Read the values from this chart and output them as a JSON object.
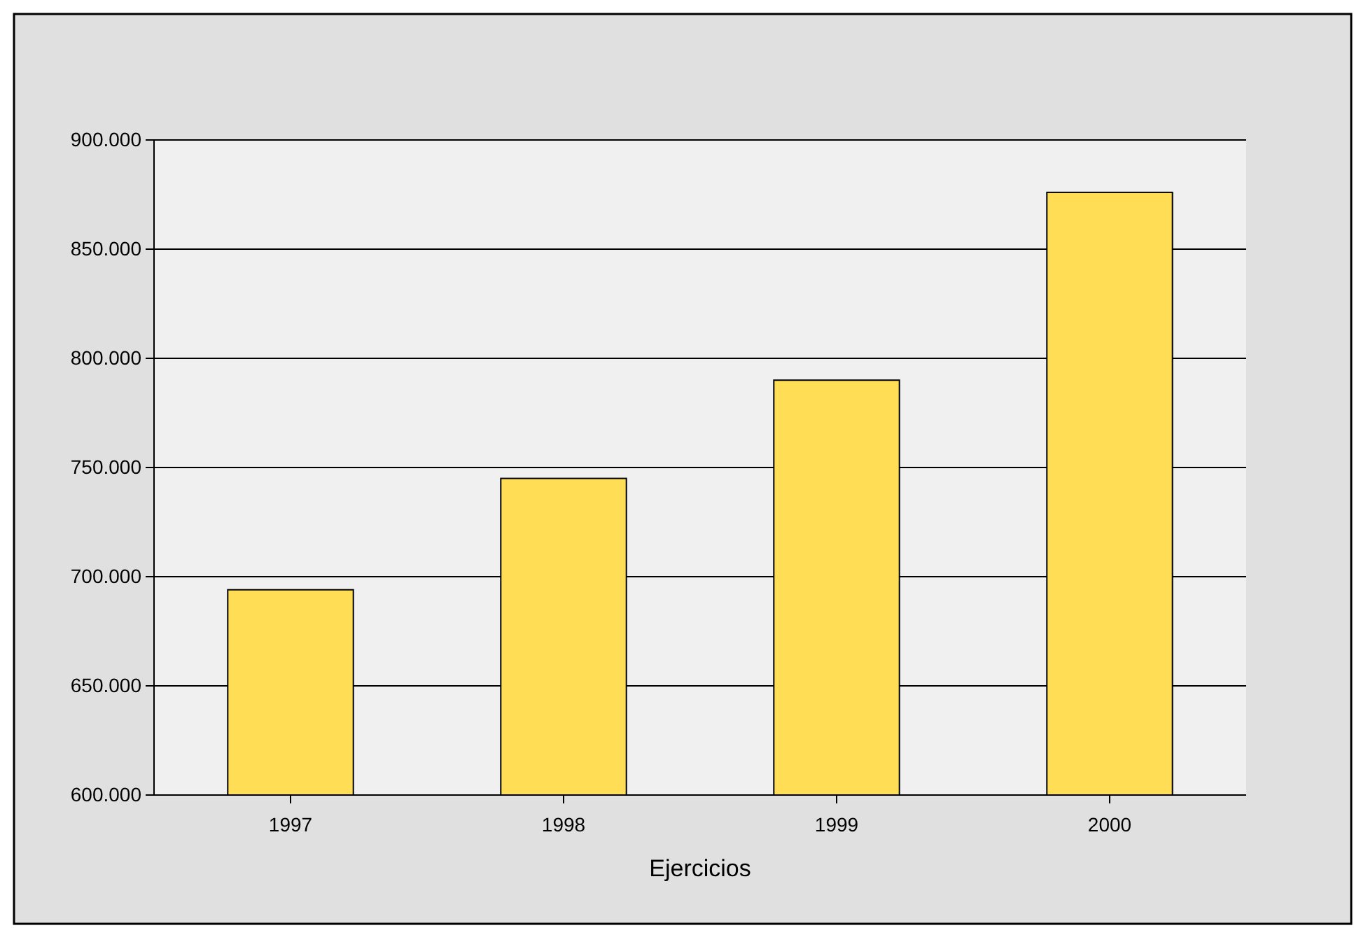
{
  "chart_data": {
    "type": "bar",
    "xlabel": "Ejercicios",
    "categories": [
      "1997",
      "1998",
      "1999",
      "2000"
    ],
    "series": [
      {
        "color": "#ffdd55",
        "values": [
          694000,
          745000,
          790000,
          876000
        ]
      }
    ],
    "ylim": [
      600000,
      900000
    ],
    "yticks": [
      {
        "value": 600000,
        "label": "600.000"
      },
      {
        "value": 650000,
        "label": "650.000"
      },
      {
        "value": 700000,
        "label": "700.000"
      },
      {
        "value": 750000,
        "label": "750.000"
      },
      {
        "value": 800000,
        "label": "800.000"
      },
      {
        "value": 850000,
        "label": "850.000"
      },
      {
        "value": 900000,
        "label": "900.000"
      }
    ],
    "grid": "y"
  }
}
